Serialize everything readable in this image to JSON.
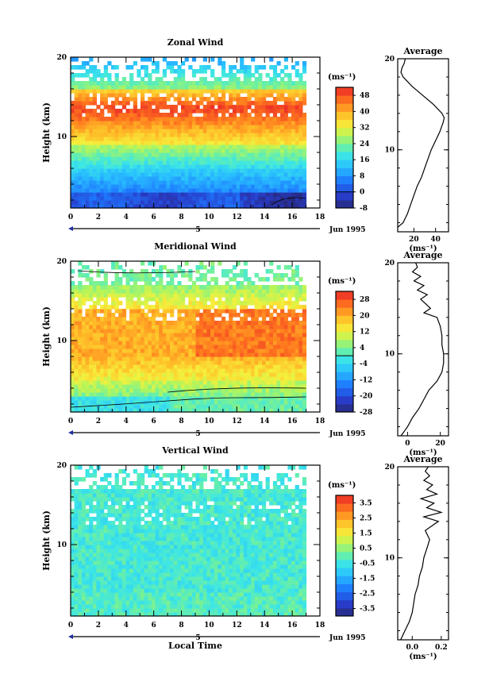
{
  "chart_data": [
    {
      "type": "heatmap",
      "title": "Zonal Wind",
      "ylabel": "Height (km)",
      "unit_label": "(ms⁻¹)",
      "x_ticks": [
        "0",
        "2",
        "4",
        "6",
        "8",
        "10",
        "12",
        "14",
        "16",
        "18"
      ],
      "xlim": [
        0,
        18
      ],
      "y_ticks": [
        "10",
        "20"
      ],
      "ylim": [
        1,
        20
      ],
      "day_marker": "5",
      "date_label": "Jun 1995",
      "colorbar_ticks": [
        "-8",
        "0",
        "8",
        "16",
        "24",
        "32",
        "40",
        "48"
      ],
      "colorbar_range": [
        -8,
        52
      ],
      "zero_contour": true,
      "profile": {
        "title": "Average",
        "x_ticks": [
          "20",
          "40"
        ],
        "xlim": [
          5,
          52
        ],
        "unit_label": "(ms⁻¹)",
        "height_km": [
          1.5,
          2,
          3,
          4,
          5,
          6,
          7,
          8,
          9,
          10,
          11,
          12,
          13,
          13.5,
          14,
          15,
          16,
          17,
          17.5,
          18,
          18.5,
          19,
          19.5,
          20
        ],
        "values": [
          5,
          10,
          14,
          17,
          20,
          23,
          27,
          30,
          33,
          36,
          40,
          44,
          47,
          48,
          46,
          38,
          28,
          18,
          14,
          10,
          8,
          9,
          11,
          12
        ]
      }
    },
    {
      "type": "heatmap",
      "title": "Meridional Wind",
      "ylabel": "Height (km)",
      "unit_label": "(ms⁻¹)",
      "x_ticks": [
        "0",
        "2",
        "4",
        "6",
        "8",
        "10",
        "12",
        "14",
        "16",
        "18"
      ],
      "xlim": [
        0,
        18
      ],
      "y_ticks": [
        "10",
        "20"
      ],
      "ylim": [
        1,
        20
      ],
      "day_marker": "5",
      "date_label": "Jun 1995",
      "colorbar_ticks": [
        "-28",
        "-20",
        "-12",
        "-4",
        "4",
        "12",
        "20",
        "28"
      ],
      "colorbar_range": [
        -28,
        32
      ],
      "zero_contour": true,
      "profile": {
        "title": "Average",
        "x_ticks": [
          "0",
          "20"
        ],
        "xlim": [
          -6,
          25
        ],
        "unit_label": "(ms⁻¹)",
        "height_km": [
          1,
          1.5,
          2,
          3,
          4,
          5,
          6,
          7,
          8,
          9,
          10,
          11,
          12,
          13,
          14,
          14.5,
          15,
          16,
          16.5,
          17,
          17.5,
          18,
          18.5,
          19,
          19.5,
          20
        ],
        "values": [
          -4,
          -2,
          0,
          3,
          7,
          10,
          13,
          18,
          21,
          22,
          22,
          21,
          21,
          20,
          18,
          10,
          14,
          8,
          12,
          6,
          10,
          4,
          8,
          3,
          6,
          5
        ]
      }
    },
    {
      "type": "heatmap",
      "title": "Vertical Wind",
      "xlabel": "Local Time",
      "ylabel": "Height (km)",
      "unit_label": "(ms⁻¹)",
      "x_ticks": [
        "0",
        "2",
        "4",
        "6",
        "8",
        "10",
        "12",
        "14",
        "16",
        "18"
      ],
      "xlim": [
        0,
        18
      ],
      "y_ticks": [
        "10",
        "20"
      ],
      "ylim": [
        1,
        20
      ],
      "day_marker": "5",
      "date_label": "Jun 1995",
      "colorbar_ticks": [
        "-3.5",
        "-2.5",
        "-1.5",
        "-0.5",
        "0.5",
        "1.5",
        "2.5",
        "3.5"
      ],
      "colorbar_range": [
        -4,
        4
      ],
      "zero_contour": false,
      "profile": {
        "title": "Average",
        "x_ticks": [
          "0.0",
          "0.2"
        ],
        "xlim": [
          -0.1,
          0.25
        ],
        "unit_label": "(ms⁻¹)",
        "height_km": [
          1,
          2,
          3,
          4,
          5,
          6,
          7,
          8,
          9,
          10,
          11,
          12,
          13,
          14,
          14.5,
          15,
          15.5,
          16,
          16.5,
          17,
          17.5,
          18,
          18.5,
          19,
          19.5,
          20
        ],
        "values": [
          -0.08,
          -0.05,
          -0.02,
          0.0,
          0.01,
          0.02,
          0.04,
          0.05,
          0.07,
          0.08,
          0.1,
          0.12,
          0.09,
          0.18,
          0.08,
          0.2,
          0.1,
          0.15,
          0.06,
          0.17,
          0.1,
          0.14,
          0.08,
          0.12,
          0.09,
          0.11
        ]
      }
    }
  ]
}
